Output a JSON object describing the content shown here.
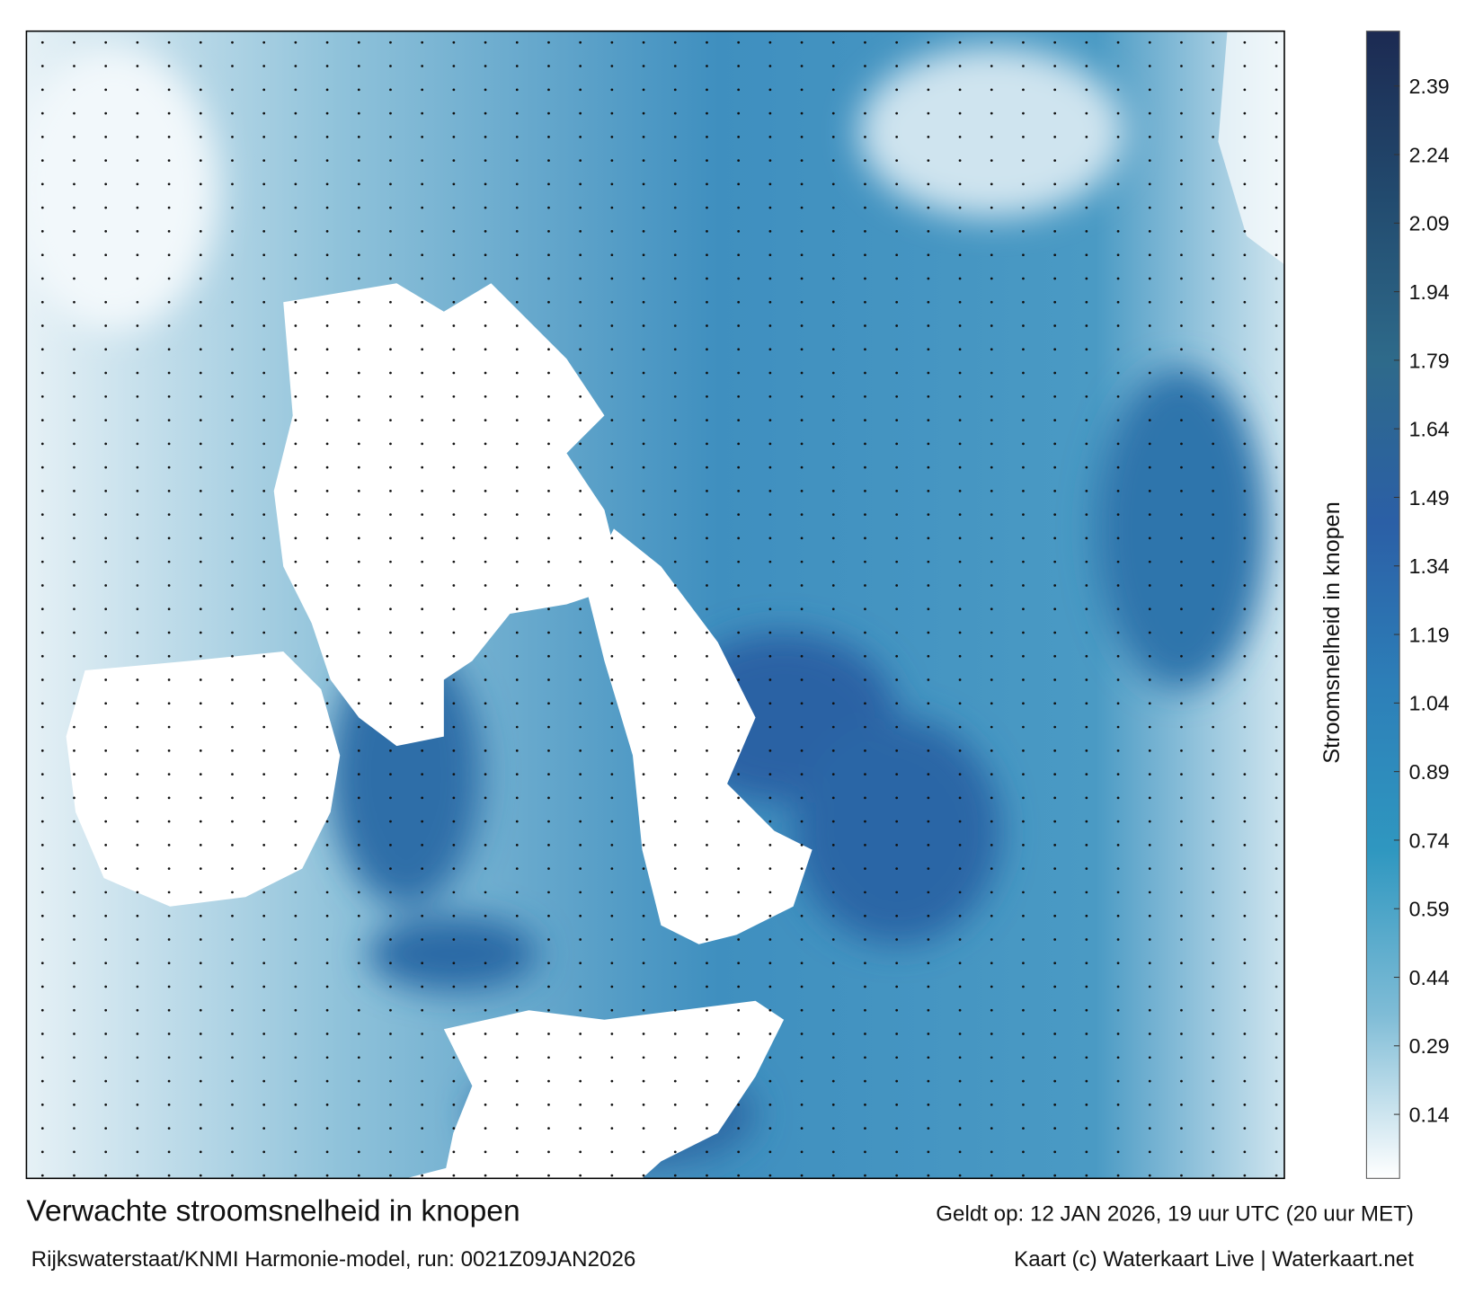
{
  "map": {
    "title": "Verwachte stroomsnelheid in knopen",
    "subtitle": "Rijkswaterstaat/KNMI Harmonie-model, run: 0021Z09JAN2026",
    "valid_time": "Geldt op: 12 JAN 2026, 19 uur UTC (20 uur MET)",
    "credits": "Kaart (c) Waterkaart Live | Waterkaart.net",
    "colorbar": {
      "label": "Stroomsnelheid in knopen",
      "lim": [
        0,
        2.51
      ],
      "ticks": [
        0.14,
        0.29,
        0.44,
        0.59,
        0.74,
        0.89,
        1.04,
        1.19,
        1.34,
        1.49,
        1.64,
        1.79,
        1.94,
        2.09,
        2.24,
        2.39
      ],
      "colormap": [
        "#ffffff",
        "#7fbcd6",
        "#2f97c0",
        "#2d7fb8",
        "#2b5fa6",
        "#2e6a8a",
        "#224a6e",
        "#1c2a52"
      ]
    }
  }
}
